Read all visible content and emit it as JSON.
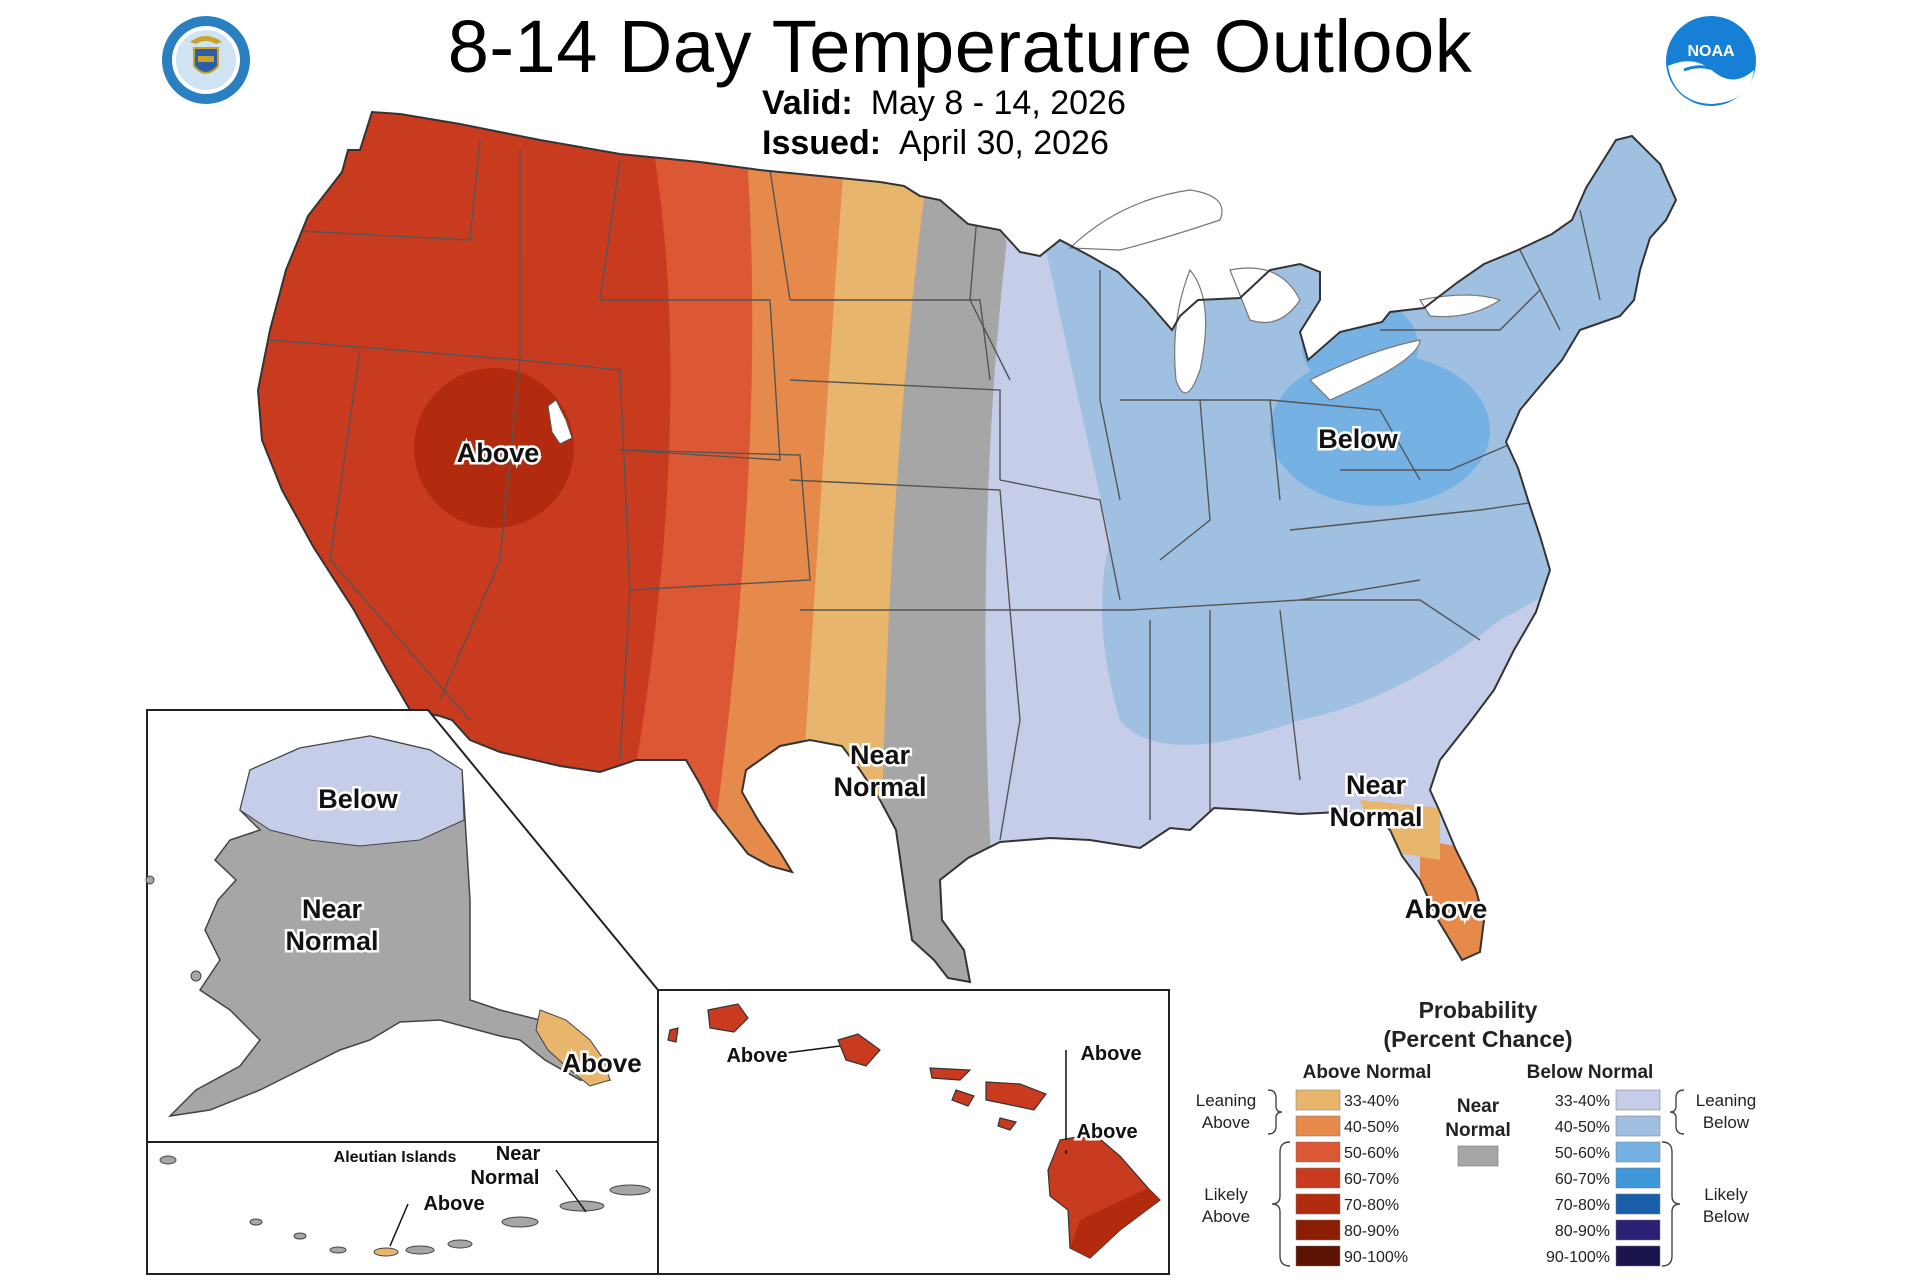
{
  "header": {
    "title": "8-14 Day Temperature Outlook",
    "valid_label": "Valid:",
    "valid_value": "May 8 - 14, 2026",
    "issued_label": "Issued:",
    "issued_value": "April 30, 2026"
  },
  "logos": {
    "left": "department-of-commerce-seal",
    "right": "noaa-logo",
    "noaa_text": "NOAA"
  },
  "map_labels": {
    "west_above": "Above",
    "texas_near": "Near",
    "texas_normal": "Normal",
    "ohio_below": "Below",
    "southeast_near": "Near",
    "southeast_normal": "Normal",
    "florida_above": "Above",
    "alaska_below": "Below",
    "alaska_near": "Near",
    "alaska_normal": "Normal",
    "alaska_se_above": "Above",
    "aleutian_title": "Aleutian Islands",
    "aleutian_above": "Above",
    "aleutian_near": "Near",
    "aleutian_normal": "Normal",
    "hawaii_above_1": "Above",
    "hawaii_above_2": "Above",
    "hawaii_above_3": "Above"
  },
  "legend": {
    "title_1": "Probability",
    "title_2": "(Percent Chance)",
    "above_header": "Above Normal",
    "below_header": "Below Normal",
    "near_1": "Near",
    "near_2": "Normal",
    "near_color": "#a6a6a6",
    "leaning_above_1": "Leaning",
    "leaning_above_2": "Above",
    "likely_above_1": "Likely",
    "likely_above_2": "Above",
    "leaning_below_1": "Leaning",
    "leaning_below_2": "Below",
    "likely_below_1": "Likely",
    "likely_below_2": "Below",
    "above": [
      {
        "label": "33-40%",
        "color": "#e8b56d"
      },
      {
        "label": "40-50%",
        "color": "#e58a4a"
      },
      {
        "label": "50-60%",
        "color": "#dc5733"
      },
      {
        "label": "60-70%",
        "color": "#c93b1f"
      },
      {
        "label": "70-80%",
        "color": "#b22b0e"
      },
      {
        "label": "80-90%",
        "color": "#8c1d05"
      },
      {
        "label": "90-100%",
        "color": "#5c1200"
      }
    ],
    "below": [
      {
        "label": "33-40%",
        "color": "#c5cde8"
      },
      {
        "label": "40-50%",
        "color": "#a0c0e2"
      },
      {
        "label": "50-60%",
        "color": "#75b1e2"
      },
      {
        "label": "60-70%",
        "color": "#3f98da"
      },
      {
        "label": "70-80%",
        "color": "#1a5faa"
      },
      {
        "label": "80-90%",
        "color": "#2a2175"
      },
      {
        "label": "90-100%",
        "color": "#1b154f"
      }
    ]
  }
}
